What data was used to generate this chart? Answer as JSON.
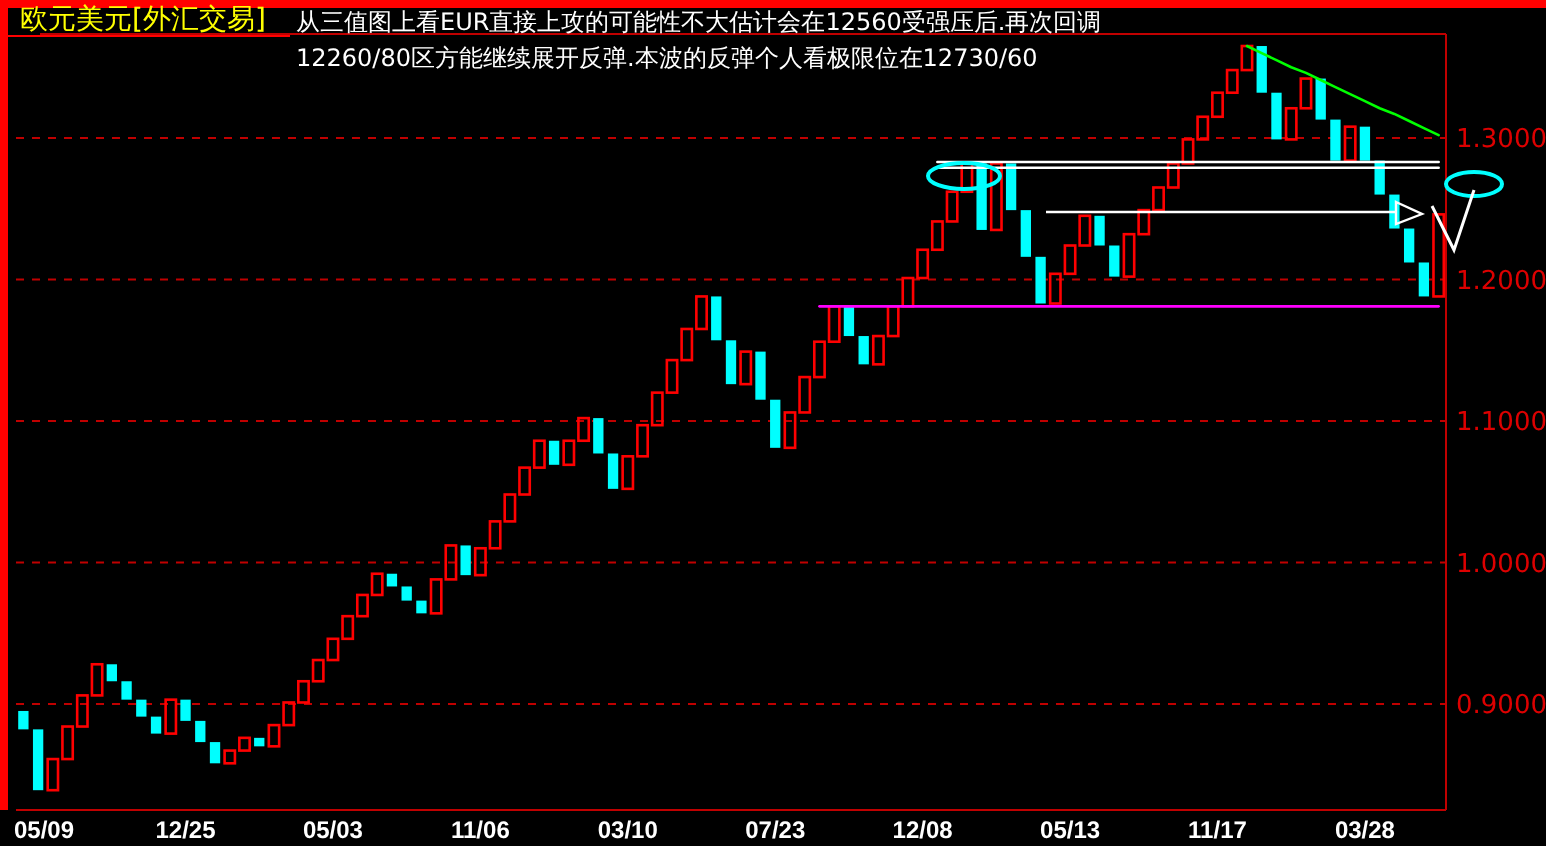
{
  "chart_data": {
    "type": "bar",
    "title": "欧元美元[外汇交易]",
    "annotations": [
      "从三值图上看EUR直接上攻的可能性不大估计会在12560受强压后.再次回调",
      "12260/80区方能继续展开反弹.本波的反弹个人看极限位在12730/60"
    ],
    "categories": [
      null,
      "05/09",
      null,
      null,
      null,
      null,
      null,
      null,
      null,
      null,
      null,
      "12/25",
      null,
      null,
      null,
      null,
      null,
      null,
      null,
      null,
      null,
      "05/03",
      null,
      null,
      null,
      null,
      null,
      null,
      null,
      null,
      null,
      "11/06",
      null,
      null,
      null,
      null,
      null,
      null,
      null,
      null,
      null,
      "03/10",
      null,
      null,
      null,
      null,
      null,
      null,
      null,
      null,
      null,
      "07/23",
      null,
      null,
      null,
      null,
      null,
      null,
      null,
      null,
      null,
      "12/08",
      null,
      null,
      null,
      null,
      null,
      null,
      null,
      null,
      null,
      "05/13",
      null,
      null,
      null,
      null,
      null,
      null,
      null,
      null,
      null,
      "11/17",
      null,
      null,
      null,
      null,
      null,
      null,
      null,
      null,
      null,
      "03/28",
      null,
      null,
      null,
      null,
      null
    ],
    "series": [
      {
        "base": [
          0.895,
          0.882,
          0.839,
          0.861,
          0.884,
          0.906,
          0.928,
          0.916,
          0.903,
          0.891,
          0.879,
          0.903,
          0.888,
          0.873,
          0.858,
          0.867,
          0.876,
          0.87,
          0.885,
          0.901,
          0.916,
          0.931,
          0.946,
          0.962,
          0.977,
          0.992,
          0.983,
          0.973,
          0.964,
          0.988,
          1.012,
          0.991,
          1.01,
          1.029,
          1.048,
          1.067,
          1.086,
          1.069,
          1.086,
          1.102,
          1.077,
          1.052,
          1.075,
          1.097,
          1.12,
          1.143,
          1.165,
          1.188,
          1.157,
          1.126,
          1.149,
          1.115,
          1.081,
          1.106,
          1.131,
          1.156,
          1.181,
          1.16,
          1.14,
          1.16,
          1.181,
          1.201,
          1.221,
          1.241,
          1.262,
          1.282,
          1.235,
          1.282,
          1.249,
          1.216,
          1.183,
          1.204,
          1.224,
          1.245,
          1.224,
          1.202,
          1.232,
          1.249,
          1.265,
          1.282,
          1.299,
          1.315,
          1.332,
          1.348,
          1.365,
          1.332,
          1.299,
          1.321,
          1.342,
          1.313,
          1.284,
          1.308,
          1.284,
          1.26,
          1.236,
          1.212,
          1.188
        ],
        "values": [
          -0.013,
          -0.043,
          0.022,
          0.023,
          0.022,
          0.022,
          -0.012,
          -0.013,
          -0.012,
          -0.012,
          0.024,
          -0.015,
          -0.015,
          -0.015,
          0.009,
          0.009,
          -0.006,
          0.015,
          0.016,
          0.015,
          0.015,
          0.015,
          0.016,
          0.015,
          0.015,
          -0.009,
          -0.01,
          -0.009,
          0.024,
          0.024,
          -0.021,
          0.019,
          0.019,
          0.019,
          0.019,
          0.019,
          -0.017,
          0.017,
          0.016,
          -0.025,
          -0.025,
          0.023,
          0.022,
          0.023,
          0.023,
          0.022,
          0.023,
          -0.031,
          -0.031,
          0.023,
          -0.034,
          -0.034,
          0.025,
          0.025,
          0.025,
          0.025,
          -0.021,
          -0.02,
          0.02,
          0.021,
          0.02,
          0.02,
          0.02,
          0.021,
          0.02,
          -0.047,
          0.047,
          -0.033,
          -0.033,
          -0.033,
          0.021,
          0.02,
          0.021,
          -0.021,
          -0.022,
          0.03,
          0.017,
          0.016,
          0.017,
          0.017,
          0.016,
          0.017,
          0.016,
          0.017,
          -0.033,
          -0.033,
          0.022,
          0.021,
          -0.029,
          -0.029,
          0.024,
          -0.024,
          -0.024,
          -0.024,
          -0.024,
          -0.024,
          0.058
        ],
        "colors": [
          "#00ffff",
          "#00ffff",
          "#ff0000",
          "#ff0000",
          "#ff0000",
          "#ff0000",
          "#00ffff",
          "#00ffff",
          "#00ffff",
          "#00ffff",
          "#ff0000",
          "#00ffff",
          "#00ffff",
          "#00ffff",
          "#ff0000",
          "#ff0000",
          "#00ffff",
          "#ff0000",
          "#ff0000",
          "#ff0000",
          "#ff0000",
          "#ff0000",
          "#ff0000",
          "#ff0000",
          "#ff0000",
          "#00ffff",
          "#00ffff",
          "#00ffff",
          "#ff0000",
          "#ff0000",
          "#00ffff",
          "#ff0000",
          "#ff0000",
          "#ff0000",
          "#ff0000",
          "#ff0000",
          "#00ffff",
          "#ff0000",
          "#ff0000",
          "#00ffff",
          "#00ffff",
          "#ff0000",
          "#ff0000",
          "#ff0000",
          "#ff0000",
          "#ff0000",
          "#ff0000",
          "#00ffff",
          "#00ffff",
          "#ff0000",
          "#00ffff",
          "#00ffff",
          "#ff0000",
          "#ff0000",
          "#ff0000",
          "#ff0000",
          "#00ffff",
          "#00ffff",
          "#ff0000",
          "#ff0000",
          "#ff0000",
          "#ff0000",
          "#ff0000",
          "#ff0000",
          "#ff0000",
          "#00ffff",
          "#ff0000",
          "#00ffff",
          "#00ffff",
          "#00ffff",
          "#ff0000",
          "#ff0000",
          "#ff0000",
          "#00ffff",
          "#00ffff",
          "#ff0000",
          "#ff0000",
          "#ff0000",
          "#ff0000",
          "#ff0000",
          "#ff0000",
          "#ff0000",
          "#ff0000",
          "#ff0000",
          "#00ffff",
          "#00ffff",
          "#ff0000",
          "#ff0000",
          "#00ffff",
          "#00ffff",
          "#ff0000",
          "#00ffff",
          "#00ffff",
          "#00ffff",
          "#00ffff",
          "#00ffff",
          "#ff0000"
        ]
      },
      {
        "type": "line",
        "color": "#ff00ff",
        "values": [
          null,
          null,
          null,
          null,
          null,
          null,
          null,
          null,
          null,
          null,
          null,
          null,
          null,
          null,
          null,
          null,
          null,
          null,
          null,
          null,
          null,
          null,
          null,
          null,
          null,
          null,
          null,
          null,
          null,
          null,
          null,
          null,
          null,
          null,
          null,
          null,
          null,
          null,
          null,
          null,
          null,
          null,
          null,
          null,
          null,
          null,
          null,
          null,
          null,
          null,
          null,
          null,
          null,
          null,
          1.181,
          1.181,
          1.181,
          1.181,
          1.181,
          1.181,
          1.181,
          1.181,
          1.181,
          1.181,
          1.181,
          1.181,
          1.181,
          1.181,
          1.181,
          1.181,
          1.181,
          1.181,
          1.181,
          1.181,
          1.181,
          1.181,
          1.181,
          1.181,
          1.181,
          1.181,
          1.181,
          1.181,
          1.181,
          1.181,
          1.181,
          1.181,
          1.181,
          1.181,
          1.181,
          1.181,
          1.181,
          1.181,
          1.181,
          1.181,
          1.181,
          1.181,
          1.181
        ]
      },
      {
        "type": "line",
        "color": "#ffffff",
        "values": [
          null,
          null,
          null,
          null,
          null,
          null,
          null,
          null,
          null,
          null,
          null,
          null,
          null,
          null,
          null,
          null,
          null,
          null,
          null,
          null,
          null,
          null,
          null,
          null,
          null,
          null,
          null,
          null,
          null,
          null,
          null,
          null,
          null,
          null,
          null,
          null,
          null,
          null,
          null,
          null,
          null,
          null,
          null,
          null,
          null,
          null,
          null,
          null,
          null,
          null,
          null,
          null,
          null,
          null,
          null,
          null,
          null,
          null,
          null,
          null,
          null,
          null,
          1.283,
          1.283,
          1.283,
          1.283,
          1.283,
          1.283,
          1.283,
          1.283,
          1.283,
          1.283,
          1.283,
          1.283,
          1.283,
          1.283,
          1.283,
          1.283,
          1.283,
          1.283,
          1.283,
          1.283,
          1.283,
          1.283,
          1.283,
          1.283,
          1.283,
          1.283,
          1.283,
          1.283,
          1.283,
          1.283,
          1.283,
          1.283,
          1.283,
          1.283,
          1.283
        ]
      },
      {
        "type": "line",
        "color": "#ffffff",
        "values": [
          null,
          null,
          null,
          null,
          null,
          null,
          null,
          null,
          null,
          null,
          null,
          null,
          null,
          null,
          null,
          null,
          null,
          null,
          null,
          null,
          null,
          null,
          null,
          null,
          null,
          null,
          null,
          null,
          null,
          null,
          null,
          null,
          null,
          null,
          null,
          null,
          null,
          null,
          null,
          null,
          null,
          null,
          null,
          null,
          null,
          null,
          null,
          null,
          null,
          null,
          null,
          null,
          null,
          null,
          null,
          null,
          null,
          null,
          null,
          null,
          null,
          null,
          1.279,
          1.279,
          1.279,
          1.279,
          1.279,
          1.279,
          1.279,
          1.279,
          1.279,
          1.279,
          1.279,
          1.279,
          1.279,
          1.279,
          1.279,
          1.279,
          1.279,
          1.279,
          1.279,
          1.279,
          1.279,
          1.279,
          1.279,
          1.279,
          1.279,
          1.279,
          1.279,
          1.279,
          1.279,
          1.279,
          1.279,
          1.279,
          1.279,
          1.279,
          1.279
        ]
      },
      {
        "type": "line",
        "color": "#00ff00",
        "values": [
          null,
          null,
          null,
          null,
          null,
          null,
          null,
          null,
          null,
          null,
          null,
          null,
          null,
          null,
          null,
          null,
          null,
          null,
          null,
          null,
          null,
          null,
          null,
          null,
          null,
          null,
          null,
          null,
          null,
          null,
          null,
          null,
          null,
          null,
          null,
          null,
          null,
          null,
          null,
          null,
          null,
          null,
          null,
          null,
          null,
          null,
          null,
          null,
          null,
          null,
          null,
          null,
          null,
          null,
          null,
          null,
          null,
          null,
          null,
          null,
          null,
          null,
          null,
          null,
          null,
          null,
          null,
          null,
          null,
          null,
          null,
          null,
          null,
          null,
          null,
          null,
          null,
          null,
          null,
          null,
          null,
          null,
          null,
          1.365,
          1.36,
          1.355,
          1.35,
          1.346,
          1.341,
          1.336,
          1.331,
          1.326,
          1.321,
          1.317,
          1.312,
          1.307,
          1.302
        ]
      }
    ],
    "ylim": [
      0.825,
      1.3735
    ],
    "yticks": [
      {
        "value": 0.9,
        "label": "0.9000"
      },
      {
        "value": 1.0,
        "label": "1.0000"
      },
      {
        "value": 1.1,
        "label": "1.1000"
      },
      {
        "value": 1.2,
        "label": "1.2000"
      },
      {
        "value": 1.3,
        "label": "1.3000"
      }
    ],
    "grid": "y"
  }
}
